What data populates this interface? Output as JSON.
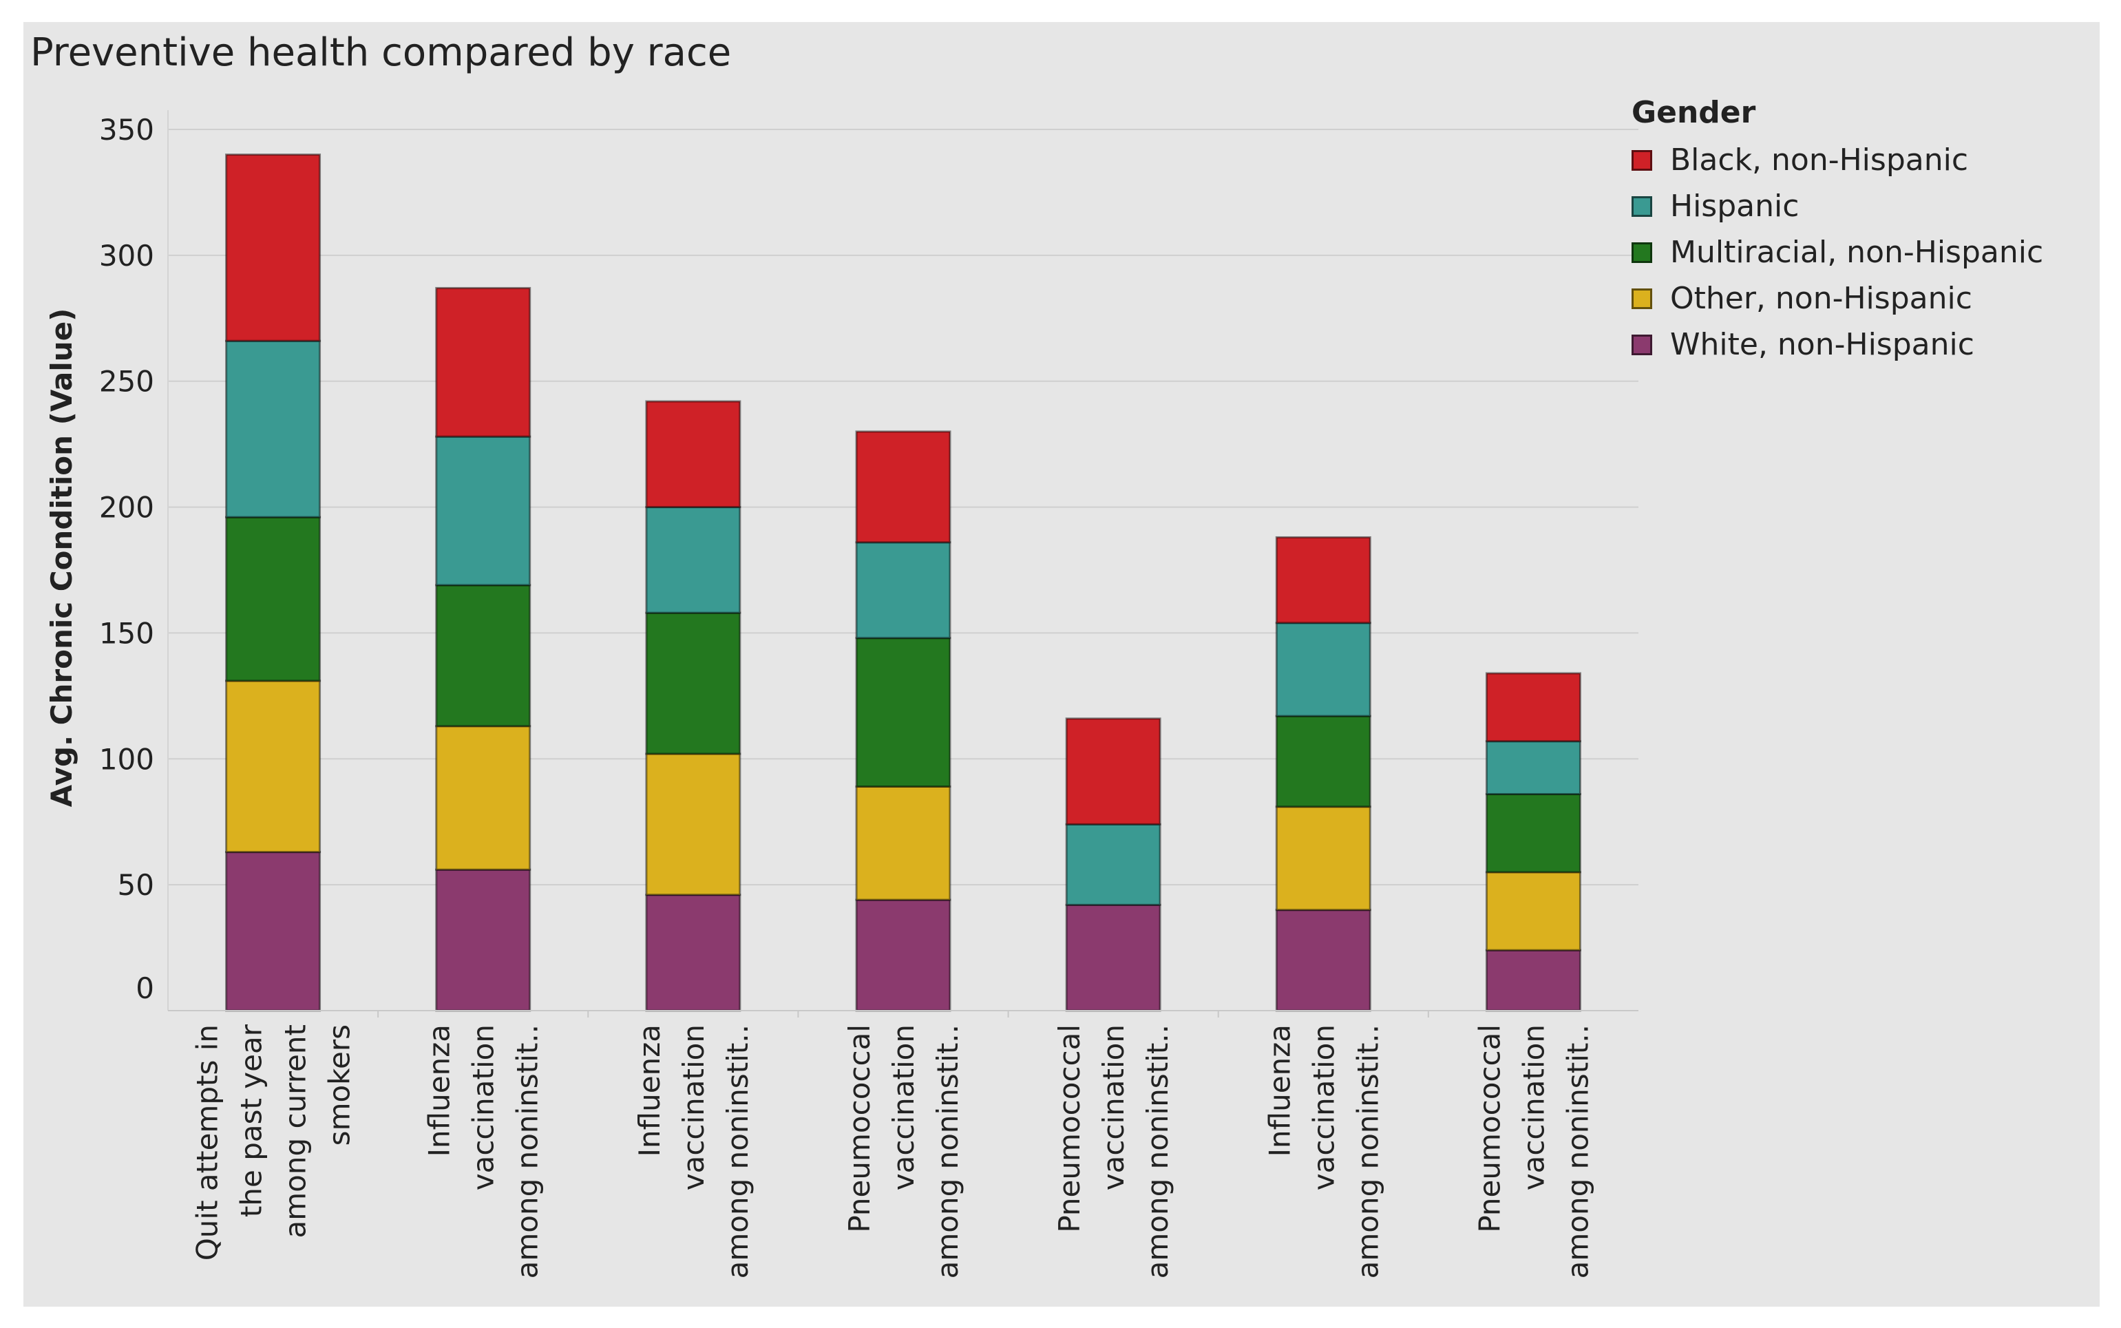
{
  "chart_data": {
    "type": "bar",
    "stacked": true,
    "title": "Preventive health compared by race",
    "xlabel": "",
    "ylabel": "Avg. Chronic Condition (Value)",
    "ylim": [
      0,
      350
    ],
    "yticks": [
      0,
      50,
      100,
      150,
      200,
      250,
      300,
      350
    ],
    "grid": true,
    "legend_position": "right",
    "legend_title": "Gender",
    "categories": [
      [
        "Quit attempts in",
        "the past year",
        "among current",
        "smokers"
      ],
      [
        "Influenza",
        "vaccination",
        "among noninstit.."
      ],
      [
        "Influenza",
        "vaccination",
        "among noninstit.."
      ],
      [
        "Pneumococcal",
        "vaccination",
        "among noninstit.."
      ],
      [
        "Pneumococcal",
        "vaccination",
        "among noninstit.."
      ],
      [
        "Influenza",
        "vaccination",
        "among noninstit.."
      ],
      [
        "Pneumococcal",
        "vaccination",
        "among noninstit.."
      ]
    ],
    "series": [
      {
        "name": "White, non-Hispanic",
        "color": "#8b3a6e",
        "values": [
          63,
          56,
          46,
          44,
          42,
          40,
          24
        ]
      },
      {
        "name": "Other, non-Hispanic",
        "color": "#dbb11e",
        "values": [
          68,
          57,
          56,
          45,
          0,
          41,
          31
        ]
      },
      {
        "name": "Multiracial, non-Hispanic",
        "color": "#23781f",
        "values": [
          65,
          56,
          56,
          59,
          0,
          36,
          31
        ]
      },
      {
        "name": "Hispanic",
        "color": "#3a9a92",
        "values": [
          70,
          59,
          42,
          38,
          32,
          37,
          21
        ]
      },
      {
        "name": "Black, non-Hispanic",
        "color": "#cf2127",
        "values": [
          74,
          59,
          42,
          44,
          42,
          34,
          27
        ]
      }
    ],
    "legend_order": [
      "Black, non-Hispanic",
      "Hispanic",
      "Multiracial, non-Hispanic",
      "Other, non-Hispanic",
      "White, non-Hispanic"
    ]
  }
}
